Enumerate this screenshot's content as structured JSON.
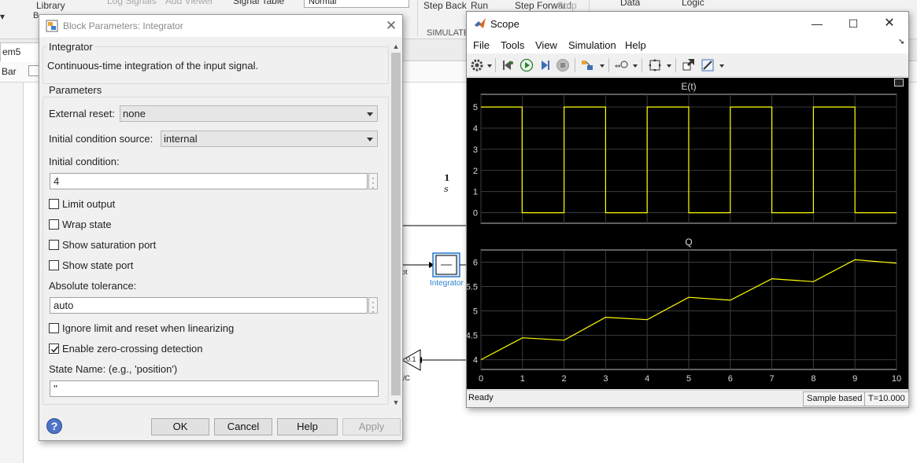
{
  "ribbon": {
    "library": "Library",
    "log_signals": "Log Signals",
    "add_viewer": "Add Viewer",
    "signal_table": "Signal Table",
    "mode_value": "Normal",
    "step_back": "Step Back",
    "run": "Run",
    "step_forward": "Step Forward",
    "stop": "Stop",
    "data": "Data",
    "logic": "Logic",
    "section_simulate": "SIMULATE"
  },
  "model": {
    "tab_label": "em5",
    "address_label": "Bar",
    "integrator_num": "1",
    "integrator_den": "s",
    "integrator_label": "Integrator",
    "gain_label": "0.1",
    "port_label_left": "ot",
    "port_label_gain": "/C"
  },
  "dialog": {
    "title": "Block Parameters: Integrator",
    "block_name": "Integrator",
    "description": "Continuous-time integration of the input signal.",
    "parameters_legend": "Parameters",
    "external_reset_label": "External reset:",
    "external_reset_value": "none",
    "ic_source_label": "Initial condition source:",
    "ic_source_value": "internal",
    "ic_label": "Initial condition:",
    "ic_value": "4",
    "limit_output": "Limit output",
    "wrap_state": "Wrap state",
    "show_saturation_port": "Show saturation port",
    "show_state_port": "Show state port",
    "abs_tol_label": "Absolute tolerance:",
    "abs_tol_value": "auto",
    "ignore_limit": "Ignore limit and reset when linearizing",
    "zero_crossing": "Enable zero-crossing detection",
    "state_name_label": "State Name: (e.g., 'position')",
    "state_name_value": "''",
    "buttons": {
      "ok": "OK",
      "cancel": "Cancel",
      "help": "Help",
      "apply": "Apply"
    }
  },
  "scope": {
    "title": "Scope",
    "menu": [
      "File",
      "Tools",
      "View",
      "Simulation",
      "Help"
    ],
    "status_ready": "Ready",
    "status_mode": "Sample based",
    "status_time": "T=10.000",
    "colors": {
      "background": "#000000",
      "axes_bg": "#000000",
      "grid": "#3d3d3d",
      "line": "#ffff00"
    }
  },
  "chart_data": [
    {
      "type": "line",
      "title": "E(t)",
      "xlim": [
        0,
        10
      ],
      "ylim": [
        -0.5,
        5.6
      ],
      "yticks": [
        0,
        1,
        2,
        3,
        4,
        5
      ],
      "xticks": [],
      "grid": true,
      "x": [
        0,
        0.99,
        0.99,
        2.0,
        2.0,
        3.0,
        3.0,
        4.0,
        4.0,
        5.0,
        5.0,
        6.0,
        6.0,
        7.0,
        7.0,
        8.0,
        8.0,
        9.0,
        9.0,
        10.0
      ],
      "y": [
        5,
        5,
        0,
        0,
        5,
        5,
        0,
        0,
        5,
        5,
        0,
        0,
        5,
        5,
        0,
        0,
        5,
        5,
        0,
        0
      ]
    },
    {
      "type": "line",
      "title": "Q",
      "xlim": [
        0,
        10
      ],
      "ylim": [
        3.8,
        6.25
      ],
      "yticks": [
        4,
        4.5,
        5,
        5.5,
        6
      ],
      "xticks": [
        0,
        1,
        2,
        3,
        4,
        5,
        6,
        7,
        8,
        9,
        10
      ],
      "grid": true,
      "x": [
        0,
        1,
        2,
        3,
        4,
        5,
        6,
        7,
        8,
        9,
        10
      ],
      "y": [
        4.0,
        4.45,
        4.4,
        4.87,
        4.82,
        5.28,
        5.22,
        5.66,
        5.6,
        6.05,
        5.98
      ]
    }
  ]
}
